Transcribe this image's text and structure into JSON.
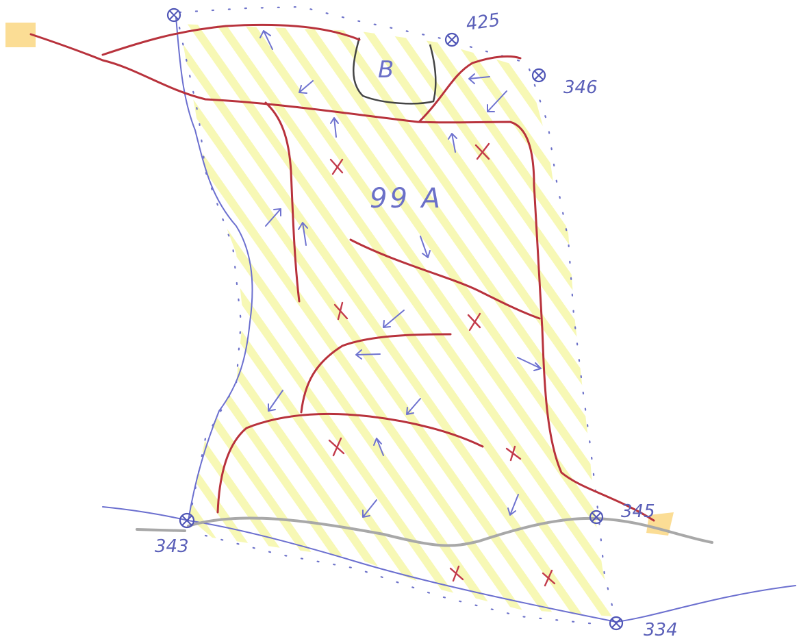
{
  "parcel": {
    "label": "99 A"
  },
  "building": {
    "label": "B"
  },
  "markers": [
    {
      "id": "m-343",
      "label": "343"
    },
    {
      "id": "m-425",
      "label": "425"
    },
    {
      "id": "m-346",
      "label": "346"
    },
    {
      "id": "m-345",
      "label": "345"
    },
    {
      "id": "m-334",
      "label": "334"
    }
  ],
  "colors": {
    "drain_lines": "#b8323c",
    "boundary_lines": "#6b6fcf",
    "hatch": "#f6f7a8",
    "highlight": "#fbd98a",
    "crosses": "#c23a4a",
    "arrows": "#6e72cf"
  }
}
